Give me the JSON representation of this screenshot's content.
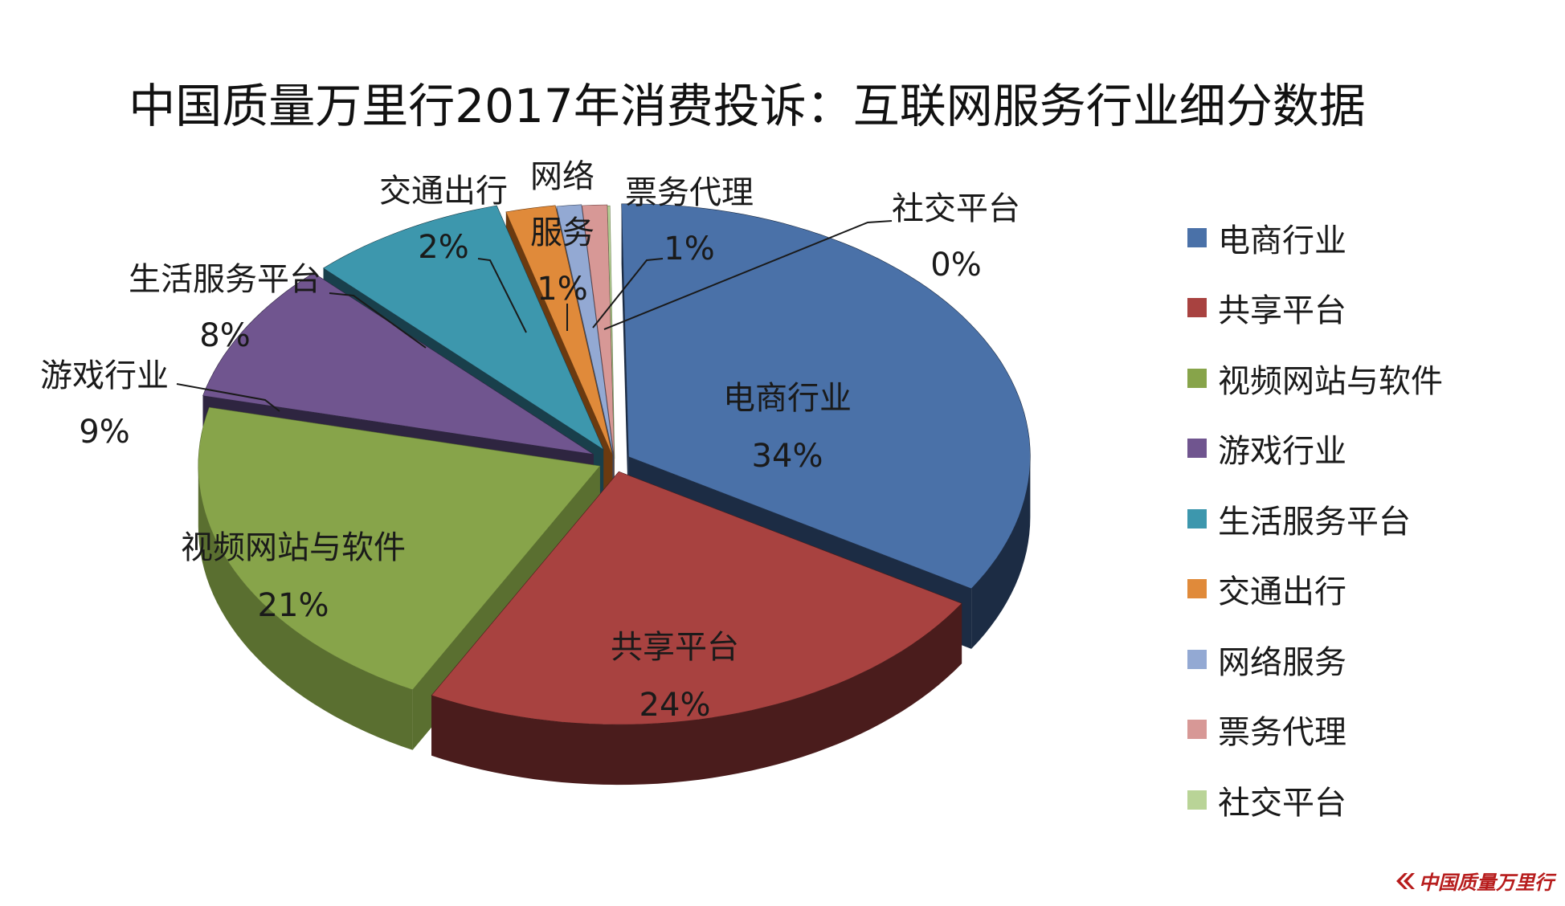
{
  "chart_data": {
    "type": "pie",
    "title": "中国质量万里行2017年消费投诉：互联网服务行业细分数据",
    "legend_position": "right",
    "slices": [
      {
        "name": "电商行业",
        "value": 34,
        "label": "34%",
        "color": "#4A71A8",
        "side": "#1C2C44"
      },
      {
        "name": "共享平台",
        "value": 24,
        "label": "24%",
        "color": "#A84240",
        "side": "#4A1C1C"
      },
      {
        "name": "视频网站与软件",
        "value": 21,
        "label": "21%",
        "color": "#87A44A",
        "side": "#5A6F30"
      },
      {
        "name": "游戏行业",
        "value": 9,
        "label": "9%",
        "color": "#70558F",
        "side": "#2E2540"
      },
      {
        "name": "生活服务平台",
        "value": 8,
        "label": "8%",
        "color": "#3D97AD",
        "side": "#193F4B"
      },
      {
        "name": "交通出行",
        "value": 2,
        "label": "2%",
        "color": "#E08A3A",
        "side": "#6B3A10"
      },
      {
        "name": "网络服务",
        "value": 1,
        "label": "1%",
        "color": "#93A9D3",
        "side": "#3F4A60"
      },
      {
        "name": "票务代理",
        "value": 1,
        "label": "1%",
        "color": "#D79896",
        "side": "#6D4544"
      },
      {
        "name": "社交平台",
        "value": 0,
        "label": "0%",
        "color": "#B9D497",
        "side": "#6B7D55"
      }
    ]
  },
  "watermark": "中国质量万里行"
}
